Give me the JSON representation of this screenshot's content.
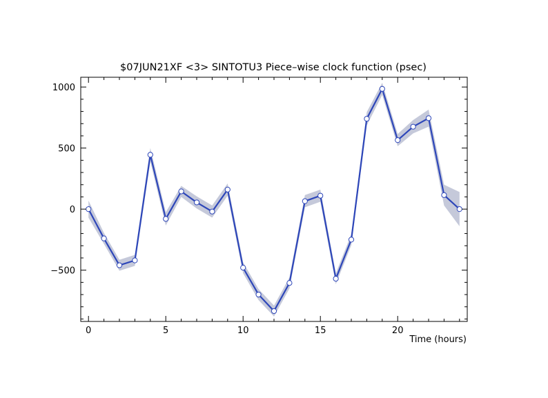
{
  "chart_data": {
    "type": "line",
    "title": "$07JUN21XF <3>  SINTOTU3  Piece–wise clock function (psec)",
    "xlabel": "Time (hours)",
    "ylabel": "",
    "xlim": [
      -0.5,
      24.5
    ],
    "ylim": [
      -920,
      1080
    ],
    "x_ticks": [
      0,
      5,
      10,
      15,
      20
    ],
    "y_ticks": [
      -500,
      0,
      500,
      1000
    ],
    "grid": false,
    "legend": "none",
    "colors": {
      "line": "#2d46b9",
      "band": "#c5c9da",
      "marker_fill": "#ffffff",
      "marker_stroke": "#2d46b9"
    },
    "series": [
      {
        "x": [
          0,
          1,
          2,
          3,
          4,
          5,
          6,
          7,
          8,
          9,
          10,
          11,
          12,
          13,
          14,
          15,
          16,
          17,
          18,
          19,
          20,
          21,
          22,
          23,
          24
        ],
        "y": [
          0,
          -240,
          -460,
          -420,
          445,
          -80,
          145,
          55,
          -20,
          160,
          -480,
          -700,
          -835,
          -605,
          65,
          110,
          -570,
          -250,
          740,
          985,
          565,
          675,
          745,
          115,
          0
        ],
        "err": [
          70,
          45,
          45,
          45,
          55,
          55,
          45,
          50,
          50,
          50,
          45,
          45,
          45,
          45,
          50,
          50,
          45,
          45,
          55,
          50,
          50,
          55,
          70,
          85,
          140
        ]
      }
    ]
  }
}
